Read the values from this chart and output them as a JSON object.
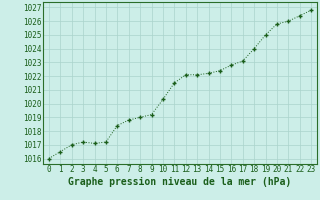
{
  "x": [
    0,
    1,
    2,
    3,
    4,
    5,
    6,
    7,
    8,
    9,
    10,
    11,
    12,
    13,
    14,
    15,
    16,
    17,
    18,
    19,
    20,
    21,
    22,
    23
  ],
  "y": [
    1016.0,
    1016.5,
    1017.0,
    1017.2,
    1017.1,
    1017.2,
    1018.4,
    1018.8,
    1019.0,
    1019.2,
    1020.3,
    1021.5,
    1022.1,
    1022.1,
    1022.2,
    1022.4,
    1022.8,
    1023.1,
    1024.0,
    1025.0,
    1025.8,
    1026.0,
    1026.4,
    1026.8
  ],
  "line_color": "#1a5e1a",
  "marker": "+",
  "bg_color": "#cceee8",
  "grid_color": "#aad4cc",
  "xlabel": "Graphe pression niveau de la mer (hPa)",
  "xlabel_color": "#1a5e1a",
  "ylabel_ticks": [
    1016,
    1017,
    1018,
    1019,
    1020,
    1021,
    1022,
    1023,
    1024,
    1025,
    1026,
    1027
  ],
  "xlim": [
    -0.5,
    23.5
  ],
  "ylim": [
    1015.6,
    1027.4
  ],
  "tick_color": "#1a5e1a",
  "xticks": [
    0,
    1,
    2,
    3,
    4,
    5,
    6,
    7,
    8,
    9,
    10,
    11,
    12,
    13,
    14,
    15,
    16,
    17,
    18,
    19,
    20,
    21,
    22,
    23
  ],
  "tick_fontsize": 5.5,
  "xlabel_fontsize": 7,
  "spine_color": "#2a6e2a"
}
